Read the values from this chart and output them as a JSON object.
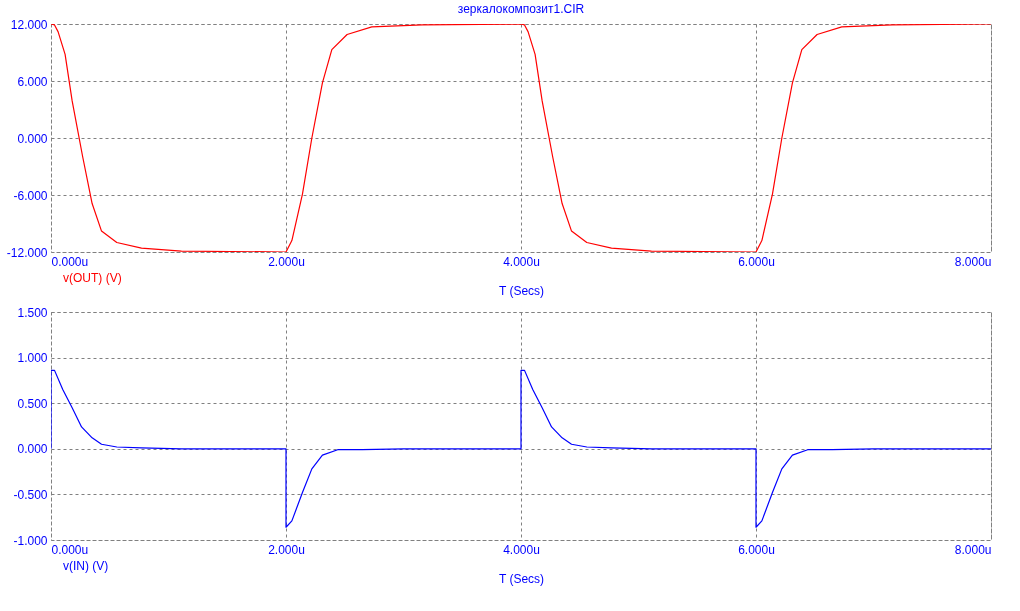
{
  "chart_data": [
    {
      "type": "line",
      "title": "зеркалокомпозит1.CIR",
      "xlabel": "T (Secs)",
      "xlim": [
        0,
        8
      ],
      "xticks": [
        {
          "value": 0,
          "label": "0.000u"
        },
        {
          "value": 2,
          "label": "2.000u"
        },
        {
          "value": 4,
          "label": "4.000u"
        },
        {
          "value": 6,
          "label": "6.000u"
        },
        {
          "value": 8,
          "label": "8.000u"
        }
      ],
      "ylim": [
        -12,
        12
      ],
      "yticks": [
        {
          "value": -12,
          "label": "-12.000"
        },
        {
          "value": -6,
          "label": "-6.000"
        },
        {
          "value": 0,
          "label": "0.000"
        },
        {
          "value": 6,
          "label": "6.000"
        },
        {
          "value": 12,
          "label": "12.000"
        }
      ],
      "grid": true,
      "legend": "bottom left",
      "series": [
        {
          "name": "v(OUT) (V)",
          "color": "#ff0000",
          "x": [
            0,
            0.03,
            0.06,
            0.12,
            0.18,
            0.27,
            0.35,
            0.43,
            0.56,
            0.77,
            1.11,
            2.0,
            2.05,
            2.14,
            2.22,
            2.31,
            2.39,
            2.52,
            2.73,
            3.16,
            4.0,
            4.03,
            4.06,
            4.12,
            4.18,
            4.27,
            4.35,
            4.43,
            4.56,
            4.77,
            5.11,
            6.0,
            6.05,
            6.14,
            6.22,
            6.31,
            6.39,
            6.52,
            6.73,
            7.16,
            8.0
          ],
          "values": [
            12,
            11.9,
            11.2,
            8.8,
            3.9,
            -2,
            -6.9,
            -9.8,
            -11,
            -11.6,
            -11.9,
            -12,
            -10.8,
            -5.9,
            0,
            5.8,
            9.3,
            10.9,
            11.7,
            11.9,
            12,
            11.9,
            11.2,
            8.8,
            3.9,
            -2,
            -6.9,
            -9.8,
            -11,
            -11.6,
            -11.9,
            -12,
            -10.8,
            -5.9,
            0,
            5.8,
            9.3,
            10.9,
            11.7,
            11.9,
            12
          ]
        }
      ]
    },
    {
      "type": "line",
      "xlabel": "T (Secs)",
      "xlim": [
        0,
        8
      ],
      "xticks": [
        {
          "value": 0,
          "label": "0.000u"
        },
        {
          "value": 2,
          "label": "2.000u"
        },
        {
          "value": 4,
          "label": "4.000u"
        },
        {
          "value": 6,
          "label": "6.000u"
        },
        {
          "value": 8,
          "label": "8.000u"
        }
      ],
      "ylim": [
        -1,
        1.5
      ],
      "yticks": [
        {
          "value": -1,
          "label": "-1.000"
        },
        {
          "value": -0.5,
          "label": "-0.500"
        },
        {
          "value": 0,
          "label": "0.000"
        },
        {
          "value": 0.5,
          "label": "0.500"
        },
        {
          "value": 1,
          "label": "1.000"
        },
        {
          "value": 1.5,
          "label": "1.500"
        }
      ],
      "grid": true,
      "legend": "bottom left",
      "series": [
        {
          "name": "v(IN) (V)",
          "color": "#0000ff",
          "x": [
            0,
            0,
            0.03,
            0.1,
            0.18,
            0.26,
            0.35,
            0.43,
            0.56,
            0.77,
            1.11,
            2.0,
            2.0,
            2.05,
            2.14,
            2.22,
            2.31,
            2.44,
            2.65,
            3.0,
            4.0,
            4.0,
            4.03,
            4.1,
            4.18,
            4.26,
            4.35,
            4.43,
            4.56,
            4.77,
            5.11,
            6.0,
            6.0,
            6.05,
            6.14,
            6.22,
            6.31,
            6.44,
            6.65,
            7.0,
            8.0
          ],
          "values": [
            0,
            0.86,
            0.86,
            0.65,
            0.45,
            0.24,
            0.12,
            0.05,
            0.02,
            0.01,
            0,
            0,
            -0.86,
            -0.79,
            -0.48,
            -0.22,
            -0.07,
            -0.01,
            -0.01,
            0,
            0,
            0.86,
            0.86,
            0.65,
            0.45,
            0.24,
            0.12,
            0.05,
            0.02,
            0.01,
            0,
            0,
            -0.86,
            -0.79,
            -0.48,
            -0.22,
            -0.07,
            -0.01,
            -0.01,
            0,
            0
          ]
        }
      ]
    }
  ]
}
